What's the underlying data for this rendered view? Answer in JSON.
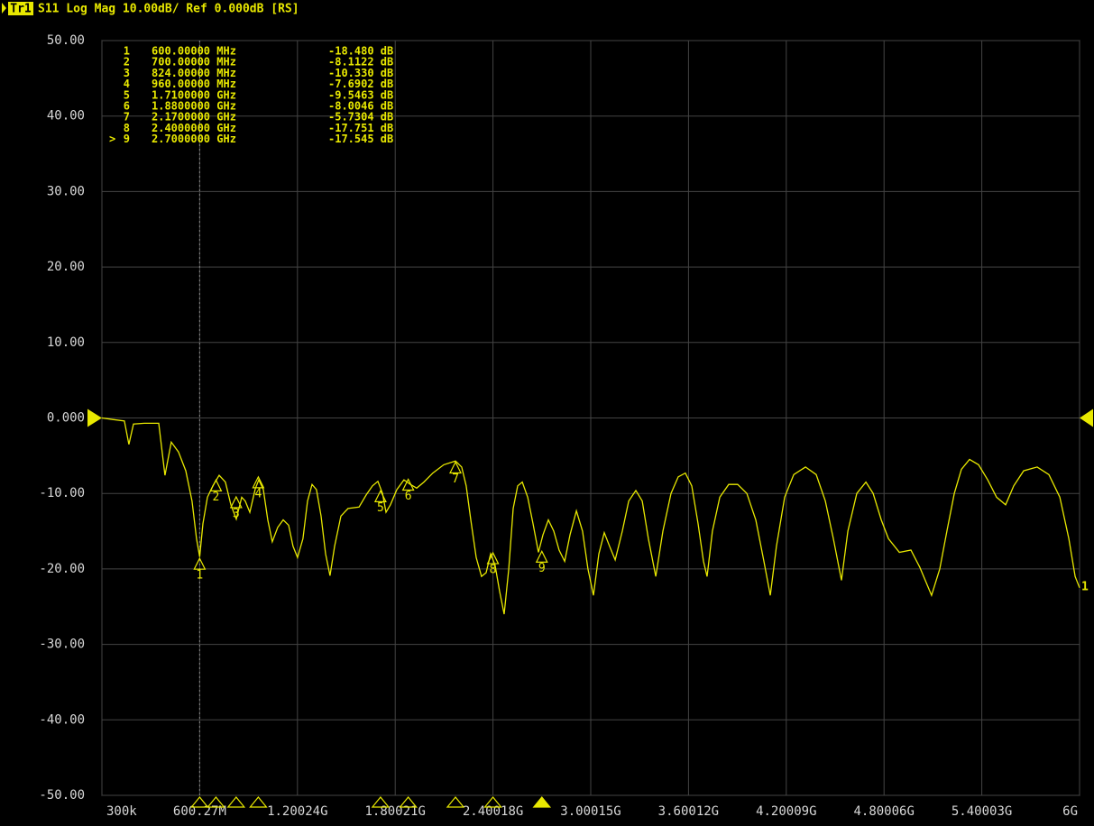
{
  "chart_data": {
    "type": "line",
    "trace_name": "Tr1",
    "title": "S11 Log Mag 10.00dB/ Ref 0.000dB [RS]",
    "reference_level": 0,
    "trace_label": "1",
    "xlim": [
      0.3,
      6000
    ],
    "xticks": [
      {
        "value": 0.3,
        "label": "300k"
      },
      {
        "value": 600.27,
        "label": "600.27M"
      },
      {
        "value": 1200.24,
        "label": "1.20024G"
      },
      {
        "value": 1800.21,
        "label": "1.80021G"
      },
      {
        "value": 2400.18,
        "label": "2.40018G"
      },
      {
        "value": 3000.15,
        "label": "3.00015G"
      },
      {
        "value": 3600.12,
        "label": "3.60012G"
      },
      {
        "value": 4200.09,
        "label": "4.20009G"
      },
      {
        "value": 4800.06,
        "label": "4.80006G"
      },
      {
        "value": 5400.03,
        "label": "5.40003G"
      },
      {
        "value": 6000,
        "label": "6G"
      }
    ],
    "ylim": [
      -50,
      50
    ],
    "yticks": [
      {
        "value": 50,
        "label": "50.00"
      },
      {
        "value": 40,
        "label": "40.00"
      },
      {
        "value": 30,
        "label": "30.00"
      },
      {
        "value": 20,
        "label": "20.00"
      },
      {
        "value": 10,
        "label": "10.00"
      },
      {
        "value": 0,
        "label": "0.000"
      },
      {
        "value": -10,
        "label": "-10.00"
      },
      {
        "value": -20,
        "label": "-20.00"
      },
      {
        "value": -30,
        "label": "-30.00"
      },
      {
        "value": -40,
        "label": "-40.00"
      },
      {
        "value": -50,
        "label": "-50.00"
      }
    ],
    "grid": true,
    "series": [
      {
        "name": "S11",
        "color": "#e8e800",
        "x": [
          0.3,
          66,
          138,
          166,
          194,
          260,
          349,
          387,
          426,
          470,
          515,
          553,
          581,
          600,
          620,
          648,
          681,
          720,
          758,
          792,
          825,
          858,
          880,
          908,
          941,
          963,
          991,
          1018,
          1046,
          1079,
          1113,
          1146,
          1173,
          1201,
          1234,
          1262,
          1290,
          1317,
          1345,
          1373,
          1400,
          1428,
          1467,
          1511,
          1578,
          1622,
          1661,
          1694,
          1722,
          1744,
          1771,
          1810,
          1854,
          1893,
          1932,
          1976,
          2031,
          2098,
          2170,
          2208,
          2236,
          2264,
          2297,
          2330,
          2358,
          2386,
          2413,
          2441,
          2469,
          2497,
          2524,
          2552,
          2580,
          2613,
          2646,
          2679,
          2707,
          2740,
          2773,
          2806,
          2840,
          2873,
          2912,
          2950,
          2983,
          3017,
          3050,
          3083,
          3116,
          3150,
          3194,
          3233,
          3277,
          3316,
          3354,
          3399,
          3443,
          3493,
          3537,
          3581,
          3620,
          3659,
          3692,
          3714,
          3747,
          3792,
          3847,
          3902,
          3958,
          4013,
          4063,
          4102,
          4140,
          4190,
          4246,
          4318,
          4384,
          4440,
          4489,
          4539,
          4578,
          4633,
          4689,
          4733,
          4783,
          4827,
          4894,
          4965,
          5020,
          5092,
          5142,
          5186,
          5231,
          5275,
          5325,
          5380,
          5436,
          5491,
          5546,
          5596,
          5657,
          5740,
          5812,
          5879,
          5934,
          5973,
          6000
        ],
        "values": [
          0,
          -0.2,
          -0.4,
          -3.5,
          -0.8,
          -0.7,
          -0.7,
          -7.6,
          -3.2,
          -4.5,
          -7,
          -11,
          -16,
          -18.4,
          -14,
          -10.5,
          -9,
          -7.6,
          -8.5,
          -11.5,
          -13.4,
          -10.5,
          -11,
          -12.5,
          -9.4,
          -8.2,
          -9.5,
          -13.5,
          -16.4,
          -14.5,
          -13.5,
          -14.2,
          -17,
          -18.5,
          -16,
          -11,
          -8.8,
          -9.5,
          -13,
          -18,
          -20.9,
          -17,
          -13,
          -12,
          -11.8,
          -10.2,
          -9,
          -8.4,
          -10,
          -12.5,
          -11.5,
          -9.5,
          -8.2,
          -8.8,
          -9.3,
          -8.5,
          -7.3,
          -6.2,
          -5.7,
          -6.5,
          -9,
          -13.5,
          -18.5,
          -21,
          -20.5,
          -18,
          -19.5,
          -23,
          -26,
          -20,
          -12,
          -9,
          -8.5,
          -10.5,
          -14,
          -17.8,
          -15.5,
          -13.5,
          -15,
          -17.5,
          -19,
          -15.5,
          -12.3,
          -15,
          -20,
          -23.5,
          -18,
          -15.2,
          -17,
          -18.8,
          -15,
          -11,
          -9.6,
          -11,
          -16,
          -21,
          -15,
          -10,
          -7.8,
          -7.3,
          -9,
          -14,
          -19,
          -21,
          -15,
          -10.5,
          -8.8,
          -8.8,
          -10,
          -13.5,
          -19,
          -23.5,
          -17,
          -10.5,
          -7.5,
          -6.5,
          -7.5,
          -11,
          -16,
          -21.5,
          -15,
          -10,
          -8.5,
          -10,
          -13.5,
          -16,
          -17.8,
          -17.5,
          -19.8,
          -23.5,
          -20,
          -15,
          -10,
          -6.8,
          -5.5,
          -6.2,
          -8.2,
          -10.5,
          -11.5,
          -9,
          -7,
          -6.5,
          -7.5,
          -10.5,
          -16,
          -21,
          -22.5
        ]
      }
    ],
    "markers": {
      "names": [
        "1",
        "2",
        "3",
        "4",
        "5",
        "6",
        "7",
        "8",
        "9"
      ],
      "x": [
        600,
        700,
        824,
        960,
        1710,
        1880,
        2170,
        2400,
        2700
      ],
      "x_labels": [
        "600.00000 MHz",
        "700.00000 MHz",
        "824.00000 MHz",
        "960.00000 MHz",
        "1.7100000 GHz",
        "1.8800000 GHz",
        "2.1700000 GHz",
        "2.4000000 GHz",
        "2.7000000 GHz"
      ],
      "values": [
        -18.48,
        -8.1122,
        -10.33,
        -7.6902,
        -9.5463,
        -8.0046,
        -5.7304,
        -17.751,
        -17.545
      ],
      "value_labels": [
        "-18.480 dB",
        "-8.1122 dB",
        "-10.330 dB",
        "-7.6902 dB",
        "-9.5463 dB",
        "-8.0046 dB",
        "-5.7304 dB",
        "-17.751 dB",
        "-17.545 dB"
      ],
      "color": "#e8e800",
      "active_marker": 8,
      "active_symbol": ">"
    }
  }
}
